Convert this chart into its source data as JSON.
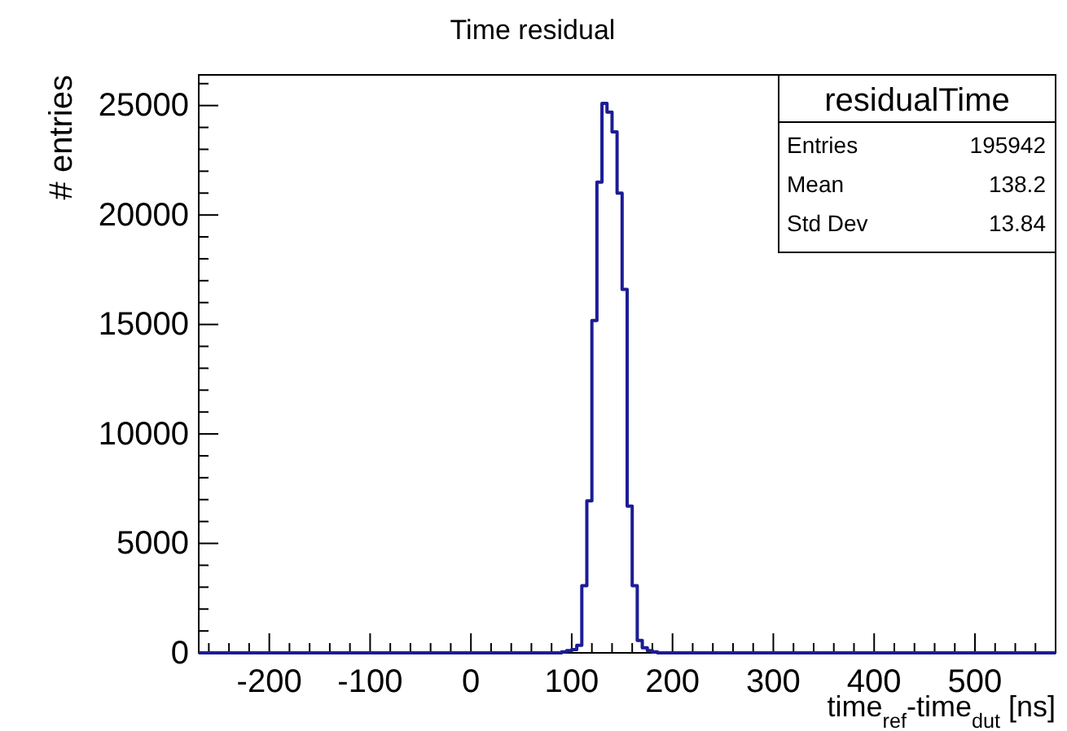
{
  "chart_data": {
    "type": "histogram",
    "title": "Time residual",
    "xlabel": "time$_{ref}$-time$_{dut}$ [ns]",
    "ylabel": "# entries",
    "bins": [
      -270,
      90,
      95,
      100,
      105,
      110,
      115,
      120,
      125,
      130,
      135,
      140,
      145,
      150,
      155,
      160,
      165,
      170,
      175,
      180,
      185,
      580
    ],
    "values": [
      0,
      50,
      100,
      150,
      340,
      3070,
      6940,
      15180,
      21500,
      25100,
      24700,
      23800,
      21000,
      16600,
      6700,
      3070,
      570,
      230,
      100,
      50,
      0
    ],
    "color": "#1c1c96",
    "xlim": [
      -270,
      580
    ],
    "xticks": [
      -200,
      -100,
      0,
      100,
      200,
      300,
      400,
      500,
      {
        "value": -260,
        "label": null
      },
      {
        "value": -240,
        "label": null
      },
      {
        "value": -220,
        "label": null
      },
      {
        "value": -180,
        "label": null
      },
      {
        "value": -160,
        "label": null
      },
      {
        "value": -140,
        "label": null
      },
      {
        "value": -120,
        "label": null
      },
      {
        "value": -80,
        "label": null
      },
      {
        "value": -60,
        "label": null
      },
      {
        "value": -40,
        "label": null
      },
      {
        "value": -20,
        "label": null
      },
      {
        "value": 20,
        "label": null
      },
      {
        "value": 40,
        "label": null
      },
      {
        "value": 60,
        "label": null
      },
      {
        "value": 80,
        "label": null
      },
      {
        "value": 120,
        "label": null
      },
      {
        "value": 140,
        "label": null
      },
      {
        "value": 160,
        "label": null
      },
      {
        "value": 180,
        "label": null
      },
      {
        "value": 220,
        "label": null
      },
      {
        "value": 240,
        "label": null
      },
      {
        "value": 260,
        "label": null
      },
      {
        "value": 280,
        "label": null
      },
      {
        "value": 320,
        "label": null
      },
      {
        "value": 340,
        "label": null
      },
      {
        "value": 360,
        "label": null
      },
      {
        "value": 380,
        "label": null
      },
      {
        "value": 420,
        "label": null
      },
      {
        "value": 440,
        "label": null
      },
      {
        "value": 460,
        "label": null
      },
      {
        "value": 480,
        "label": null
      },
      {
        "value": 520,
        "label": null
      },
      {
        "value": 540,
        "label": null
      },
      {
        "value": 560,
        "label": null
      }
    ],
    "ylim": [
      0,
      26400
    ],
    "yticks": [
      0,
      5000,
      10000,
      15000,
      20000,
      25000,
      {
        "value": 1000,
        "label": null
      },
      {
        "value": 2000,
        "label": null
      },
      {
        "value": 3000,
        "label": null
      },
      {
        "value": 4000,
        "label": null
      },
      {
        "value": 6000,
        "label": null
      },
      {
        "value": 7000,
        "label": null
      },
      {
        "value": 8000,
        "label": null
      },
      {
        "value": 9000,
        "label": null
      },
      {
        "value": 11000,
        "label": null
      },
      {
        "value": 12000,
        "label": null
      },
      {
        "value": 13000,
        "label": null
      },
      {
        "value": 14000,
        "label": null
      },
      {
        "value": 16000,
        "label": null
      },
      {
        "value": 17000,
        "label": null
      },
      {
        "value": 18000,
        "label": null
      },
      {
        "value": 19000,
        "label": null
      },
      {
        "value": 21000,
        "label": null
      },
      {
        "value": 22000,
        "label": null
      },
      {
        "value": 23000,
        "label": null
      },
      {
        "value": 24000,
        "label": null
      },
      {
        "value": 26000,
        "label": null
      }
    ],
    "grid": false,
    "annotations": [
      "residualTime",
      "Entries",
      "195942",
      "Mean",
      "138.2",
      "Std Dev",
      "13.84"
    ]
  }
}
